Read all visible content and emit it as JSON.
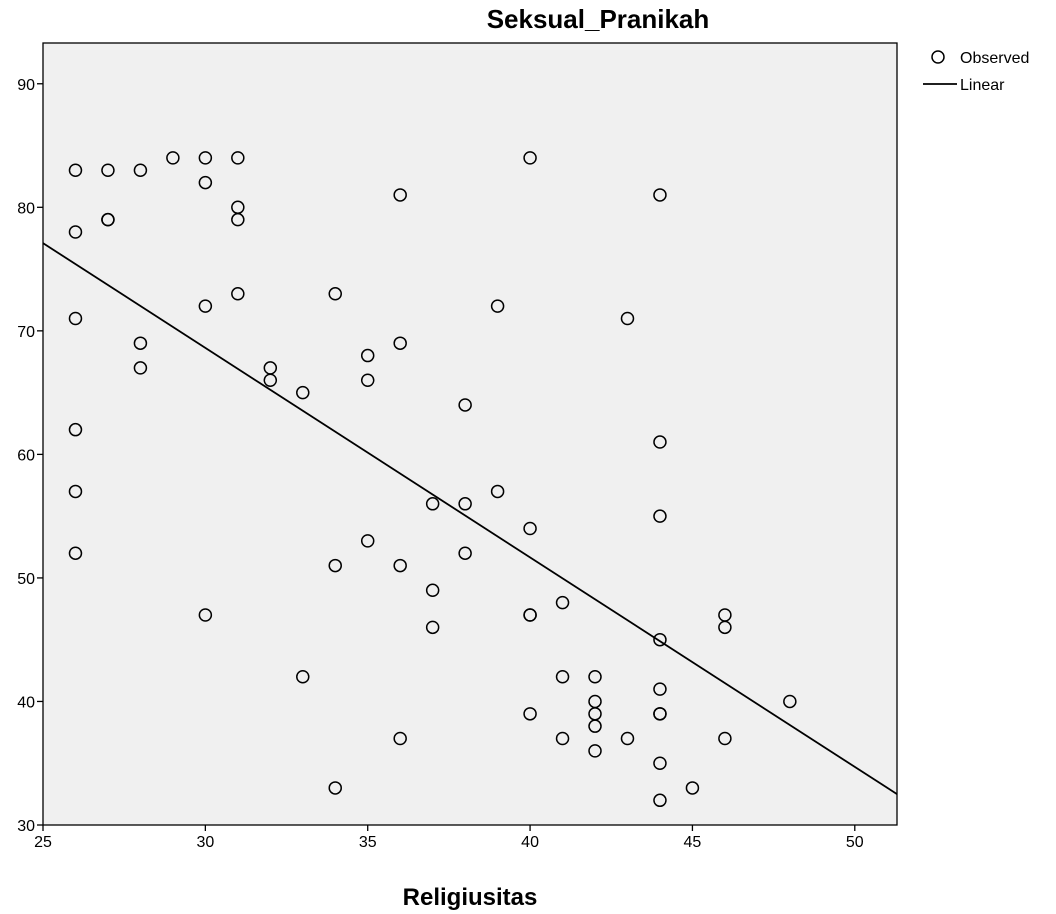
{
  "chart_data": {
    "type": "scatter",
    "title": "Seksual_Pranikah",
    "xlabel": "Religiusitas",
    "ylabel": "",
    "xlim": [
      25,
      51.3
    ],
    "ylim": [
      30,
      93.3
    ],
    "xticks": [
      25,
      30,
      35,
      40,
      45,
      50
    ],
    "yticks": [
      30,
      40,
      50,
      60,
      70,
      80,
      90
    ],
    "grid": false,
    "legend_position": "top-right outside",
    "legend": [
      {
        "label": "Observed",
        "marker": "circle"
      },
      {
        "label": "Linear",
        "marker": "line"
      }
    ],
    "colors": {
      "plot_background": "#f0f0f0",
      "marker": "#000000",
      "line": "#000000"
    },
    "series": [
      {
        "name": "Observed",
        "points": [
          [
            26,
            83
          ],
          [
            27,
            83
          ],
          [
            28,
            83
          ],
          [
            29,
            84
          ],
          [
            30,
            84
          ],
          [
            31,
            84
          ],
          [
            40,
            84
          ],
          [
            30,
            82
          ],
          [
            36,
            81
          ],
          [
            44,
            81
          ],
          [
            31,
            80
          ],
          [
            27,
            79
          ],
          [
            27,
            79
          ],
          [
            31,
            79
          ],
          [
            26,
            78
          ],
          [
            31,
            73
          ],
          [
            34,
            73
          ],
          [
            30,
            72
          ],
          [
            39,
            72
          ],
          [
            26,
            71
          ],
          [
            43,
            71
          ],
          [
            28,
            69
          ],
          [
            36,
            69
          ],
          [
            35,
            68
          ],
          [
            28,
            67
          ],
          [
            32,
            67
          ],
          [
            32,
            66
          ],
          [
            35,
            66
          ],
          [
            33,
            65
          ],
          [
            38,
            64
          ],
          [
            26,
            62
          ],
          [
            44,
            61
          ],
          [
            26,
            57
          ],
          [
            39,
            57
          ],
          [
            37,
            56
          ],
          [
            38,
            56
          ],
          [
            44,
            55
          ],
          [
            40,
            54
          ],
          [
            35,
            53
          ],
          [
            26,
            52
          ],
          [
            38,
            52
          ],
          [
            34,
            51
          ],
          [
            36,
            51
          ],
          [
            37,
            49
          ],
          [
            41,
            48
          ],
          [
            30,
            47
          ],
          [
            40,
            47
          ],
          [
            40,
            47
          ],
          [
            46,
            47
          ],
          [
            37,
            46
          ],
          [
            46,
            46
          ],
          [
            44,
            45
          ],
          [
            33,
            42
          ],
          [
            41,
            42
          ],
          [
            42,
            42
          ],
          [
            44,
            41
          ],
          [
            42,
            40
          ],
          [
            48,
            40
          ],
          [
            42,
            39
          ],
          [
            40,
            39
          ],
          [
            44,
            39
          ],
          [
            44,
            39
          ],
          [
            42,
            38
          ],
          [
            36,
            37
          ],
          [
            41,
            37
          ],
          [
            43,
            37
          ],
          [
            46,
            37
          ],
          [
            42,
            36
          ],
          [
            44,
            35
          ],
          [
            34,
            33
          ],
          [
            45,
            33
          ],
          [
            44,
            32
          ]
        ]
      },
      {
        "name": "Linear",
        "line": [
          [
            25,
            77.1
          ],
          [
            51.3,
            32.5
          ]
        ]
      }
    ]
  }
}
